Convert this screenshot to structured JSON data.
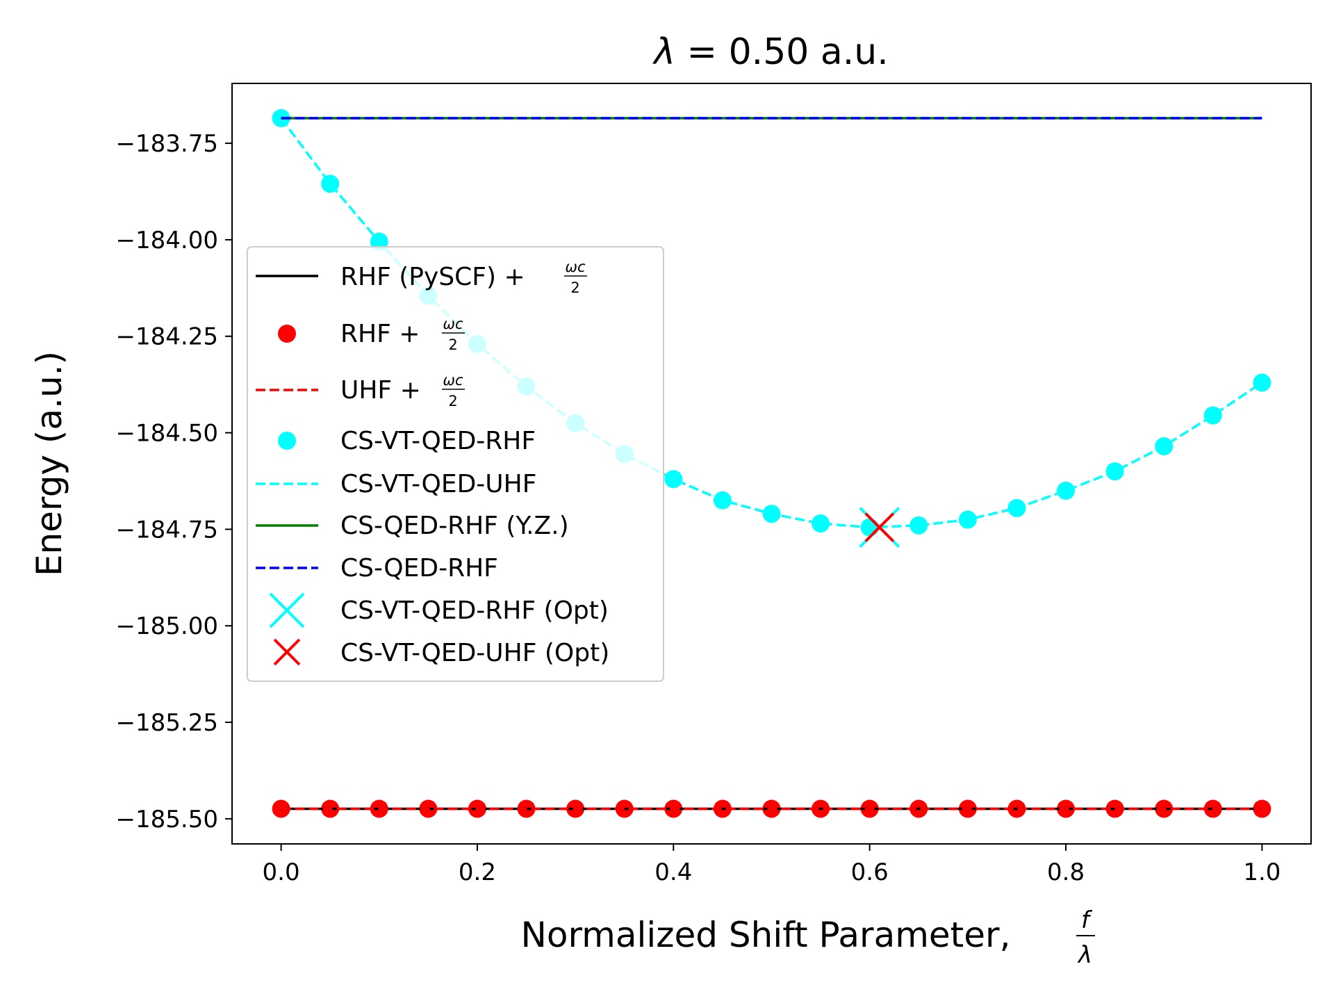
{
  "chart_data": {
    "type": "line",
    "title_prefix": "λ",
    "title_suffix": " = 0.50 a.u.",
    "xlabel": "Normalized Shift Parameter, ",
    "xlabel_frac_num": "f",
    "xlabel_frac_den": "λ",
    "ylabel": "Energy (a.u.)",
    "xlim": [
      -0.05,
      1.05
    ],
    "ylim": [
      -185.565,
      -183.595
    ],
    "x_ticks": [
      0.0,
      0.2,
      0.4,
      0.6,
      0.8,
      1.0
    ],
    "x_tick_labels": [
      "0.0",
      "0.2",
      "0.4",
      "0.6",
      "0.8",
      "1.0"
    ],
    "y_ticks": [
      -183.75,
      -184.0,
      -184.25,
      -184.5,
      -184.75,
      -185.0,
      -185.25,
      -185.5
    ],
    "y_tick_labels": [
      "−183.75",
      "−184.00",
      "−184.25",
      "−184.50",
      "−184.75",
      "−185.00",
      "−185.25",
      "−185.50"
    ],
    "grid": false,
    "legend_position": "center-left",
    "x": [
      0.0,
      0.05,
      0.1,
      0.15,
      0.2,
      0.25,
      0.3,
      0.35,
      0.4,
      0.45,
      0.5,
      0.55,
      0.6,
      0.65,
      0.7,
      0.75,
      0.8,
      0.85,
      0.9,
      0.95,
      1.0
    ],
    "series": [
      {
        "name": "RHF (PySCF) + ",
        "frac_num": "ωc",
        "frac_den": "2",
        "style": "solid-line",
        "color": "#000000",
        "values": [
          -185.474,
          -185.474,
          -185.474,
          -185.474,
          -185.474,
          -185.474,
          -185.474,
          -185.474,
          -185.474,
          -185.474,
          -185.474,
          -185.474,
          -185.474,
          -185.474,
          -185.474,
          -185.474,
          -185.474,
          -185.474,
          -185.474,
          -185.474,
          -185.474
        ]
      },
      {
        "name": "RHF + ",
        "frac_num": "ωc",
        "frac_den": "2",
        "style": "markers",
        "color": "#ff0000",
        "values": [
          -185.474,
          -185.474,
          -185.474,
          -185.474,
          -185.474,
          -185.474,
          -185.474,
          -185.474,
          -185.474,
          -185.474,
          -185.474,
          -185.474,
          -185.474,
          -185.474,
          -185.474,
          -185.474,
          -185.474,
          -185.474,
          -185.474,
          -185.474,
          -185.474
        ]
      },
      {
        "name": "UHF + ",
        "frac_num": "ωc",
        "frac_den": "2",
        "style": "dashed-line",
        "color": "#ff0000",
        "values": [
          -185.474,
          -185.474,
          -185.474,
          -185.474,
          -185.474,
          -185.474,
          -185.474,
          -185.474,
          -185.474,
          -185.474,
          -185.474,
          -185.474,
          -185.474,
          -185.474,
          -185.474,
          -185.474,
          -185.474,
          -185.474,
          -185.474,
          -185.474,
          -185.474
        ]
      },
      {
        "name": "CS-VT-QED-RHF",
        "style": "markers",
        "color": "#00ffff",
        "values": [
          -183.685,
          -183.855,
          -184.005,
          -184.145,
          -184.27,
          -184.38,
          -184.475,
          -184.555,
          -184.62,
          -184.675,
          -184.71,
          -184.735,
          -184.745,
          -184.74,
          -184.725,
          -184.695,
          -184.65,
          -184.6,
          -184.535,
          -184.455,
          -184.37
        ]
      },
      {
        "name": "CS-VT-QED-UHF",
        "style": "dashed-line",
        "color": "#00ffff",
        "values": [
          -183.685,
          -183.855,
          -184.005,
          -184.145,
          -184.27,
          -184.38,
          -184.475,
          -184.555,
          -184.62,
          -184.675,
          -184.71,
          -184.735,
          -184.745,
          -184.74,
          -184.725,
          -184.695,
          -184.65,
          -184.6,
          -184.535,
          -184.455,
          -184.37
        ]
      },
      {
        "name": "CS-QED-RHF (Y.Z.)",
        "style": "solid-line",
        "color": "#008000",
        "values": [
          -183.685,
          -183.685,
          -183.685,
          -183.685,
          -183.685,
          -183.685,
          -183.685,
          -183.685,
          -183.685,
          -183.685,
          -183.685,
          -183.685,
          -183.685,
          -183.685,
          -183.685,
          -183.685,
          -183.685,
          -183.685,
          -183.685,
          -183.685,
          -183.685
        ]
      },
      {
        "name": "CS-QED-RHF",
        "style": "dashed-line",
        "color": "#0000ff",
        "values": [
          -183.685,
          -183.685,
          -183.685,
          -183.685,
          -183.685,
          -183.685,
          -183.685,
          -183.685,
          -183.685,
          -183.685,
          -183.685,
          -183.685,
          -183.685,
          -183.685,
          -183.685,
          -183.685,
          -183.685,
          -183.685,
          -183.685,
          -183.685,
          -183.685
        ]
      }
    ],
    "optima": [
      {
        "name": "CS-VT-QED-RHF (Opt)",
        "x": 0.61,
        "y": -184.745,
        "color": "#00ffff",
        "marker": "x-large"
      },
      {
        "name": "CS-VT-QED-UHF (Opt)",
        "x": 0.61,
        "y": -184.745,
        "color": "#ff0000",
        "marker": "x"
      }
    ]
  }
}
